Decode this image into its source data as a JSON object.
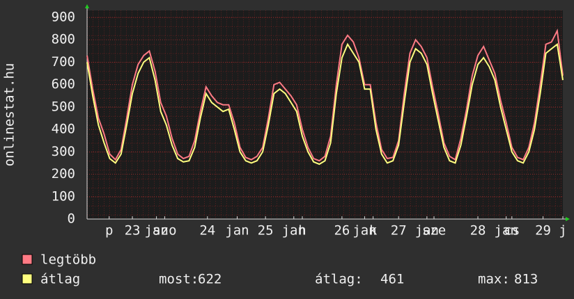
{
  "chart_data": {
    "type": "line",
    "y_label": "onlinestat.hu",
    "x": [
      0,
      2,
      4,
      6,
      8,
      10,
      12,
      14,
      16,
      18,
      20,
      22,
      24,
      26,
      28,
      30,
      32,
      34,
      36,
      38,
      40,
      42,
      44,
      46,
      48,
      50,
      52,
      54,
      56,
      58,
      60,
      62,
      64,
      66,
      68,
      70,
      72,
      74,
      76,
      78,
      80,
      82,
      84,
      86,
      88,
      90,
      92,
      94,
      96,
      98,
      100,
      102,
      104,
      106,
      108,
      110,
      112,
      114,
      116,
      118,
      120,
      122,
      124,
      126,
      128,
      130,
      132,
      134,
      136,
      138,
      140,
      142,
      144,
      146,
      148,
      150,
      152,
      154,
      156,
      158,
      160,
      162,
      164,
      166,
      168
    ],
    "xlim": [
      0,
      168
    ],
    "xticks": [
      {
        "value": 7.8,
        "label": "p"
      },
      {
        "value": 16,
        "label": "23"
      },
      {
        "value": 24.5,
        "label": "jan"
      },
      {
        "value": 27.4,
        "label": "szo"
      },
      {
        "value": 42.5,
        "label": "24"
      },
      {
        "value": 53,
        "label": "jan"
      },
      {
        "value": 63,
        "label": "25"
      },
      {
        "value": 73,
        "label": "jan"
      },
      {
        "value": 76,
        "label": "h"
      },
      {
        "value": 90,
        "label": "26"
      },
      {
        "value": 98,
        "label": "jan"
      },
      {
        "value": 101,
        "label": "k"
      },
      {
        "value": 110,
        "label": "27"
      },
      {
        "value": 120,
        "label": "jan"
      },
      {
        "value": 122.5,
        "label": "sze"
      },
      {
        "value": 138,
        "label": "28"
      },
      {
        "value": 148,
        "label": "jan"
      },
      {
        "value": 150,
        "label": "cs"
      },
      {
        "value": 161,
        "label": "29"
      },
      {
        "value": 168,
        "label": "j"
      }
    ],
    "ylim": [
      0,
      900
    ],
    "yticks": [
      0,
      100,
      200,
      300,
      400,
      500,
      600,
      700,
      800,
      900
    ],
    "grid": true,
    "series": [
      {
        "name": "legtöbb",
        "color": "#ff7b85",
        "values": [
          730,
          580,
          450,
          380,
          290,
          265,
          310,
          450,
          600,
          690,
          730,
          750,
          660,
          520,
          460,
          360,
          290,
          270,
          280,
          350,
          480,
          590,
          550,
          520,
          510,
          510,
          430,
          320,
          275,
          265,
          280,
          320,
          450,
          600,
          610,
          580,
          550,
          510,
          400,
          320,
          270,
          260,
          280,
          370,
          600,
          780,
          820,
          790,
          720,
          600,
          600,
          430,
          310,
          270,
          275,
          350,
          560,
          740,
          800,
          770,
          720,
          590,
          470,
          340,
          280,
          265,
          360,
          490,
          640,
          730,
          770,
          710,
          650,
          530,
          430,
          320,
          275,
          265,
          320,
          430,
          600,
          780,
          790,
          840,
          640
        ]
      },
      {
        "name": "átlag",
        "color": "#ffff80",
        "values": [
          700,
          550,
          420,
          340,
          270,
          250,
          290,
          420,
          560,
          650,
          700,
          720,
          620,
          480,
          420,
          330,
          270,
          255,
          260,
          320,
          450,
          560,
          520,
          500,
          480,
          490,
          400,
          300,
          260,
          250,
          260,
          300,
          420,
          560,
          580,
          560,
          520,
          480,
          370,
          300,
          255,
          245,
          260,
          340,
          560,
          720,
          780,
          740,
          700,
          580,
          580,
          400,
          290,
          250,
          260,
          330,
          520,
          700,
          760,
          740,
          690,
          560,
          440,
          320,
          260,
          250,
          330,
          460,
          600,
          690,
          720,
          680,
          620,
          500,
          400,
          300,
          260,
          250,
          300,
          400,
          560,
          740,
          760,
          780,
          620
        ]
      }
    ],
    "stats": [
      {
        "label": "most:",
        "value": 622
      },
      {
        "label": "átlag:",
        "value": 461
      },
      {
        "label": "max:",
        "value": 813
      }
    ]
  }
}
